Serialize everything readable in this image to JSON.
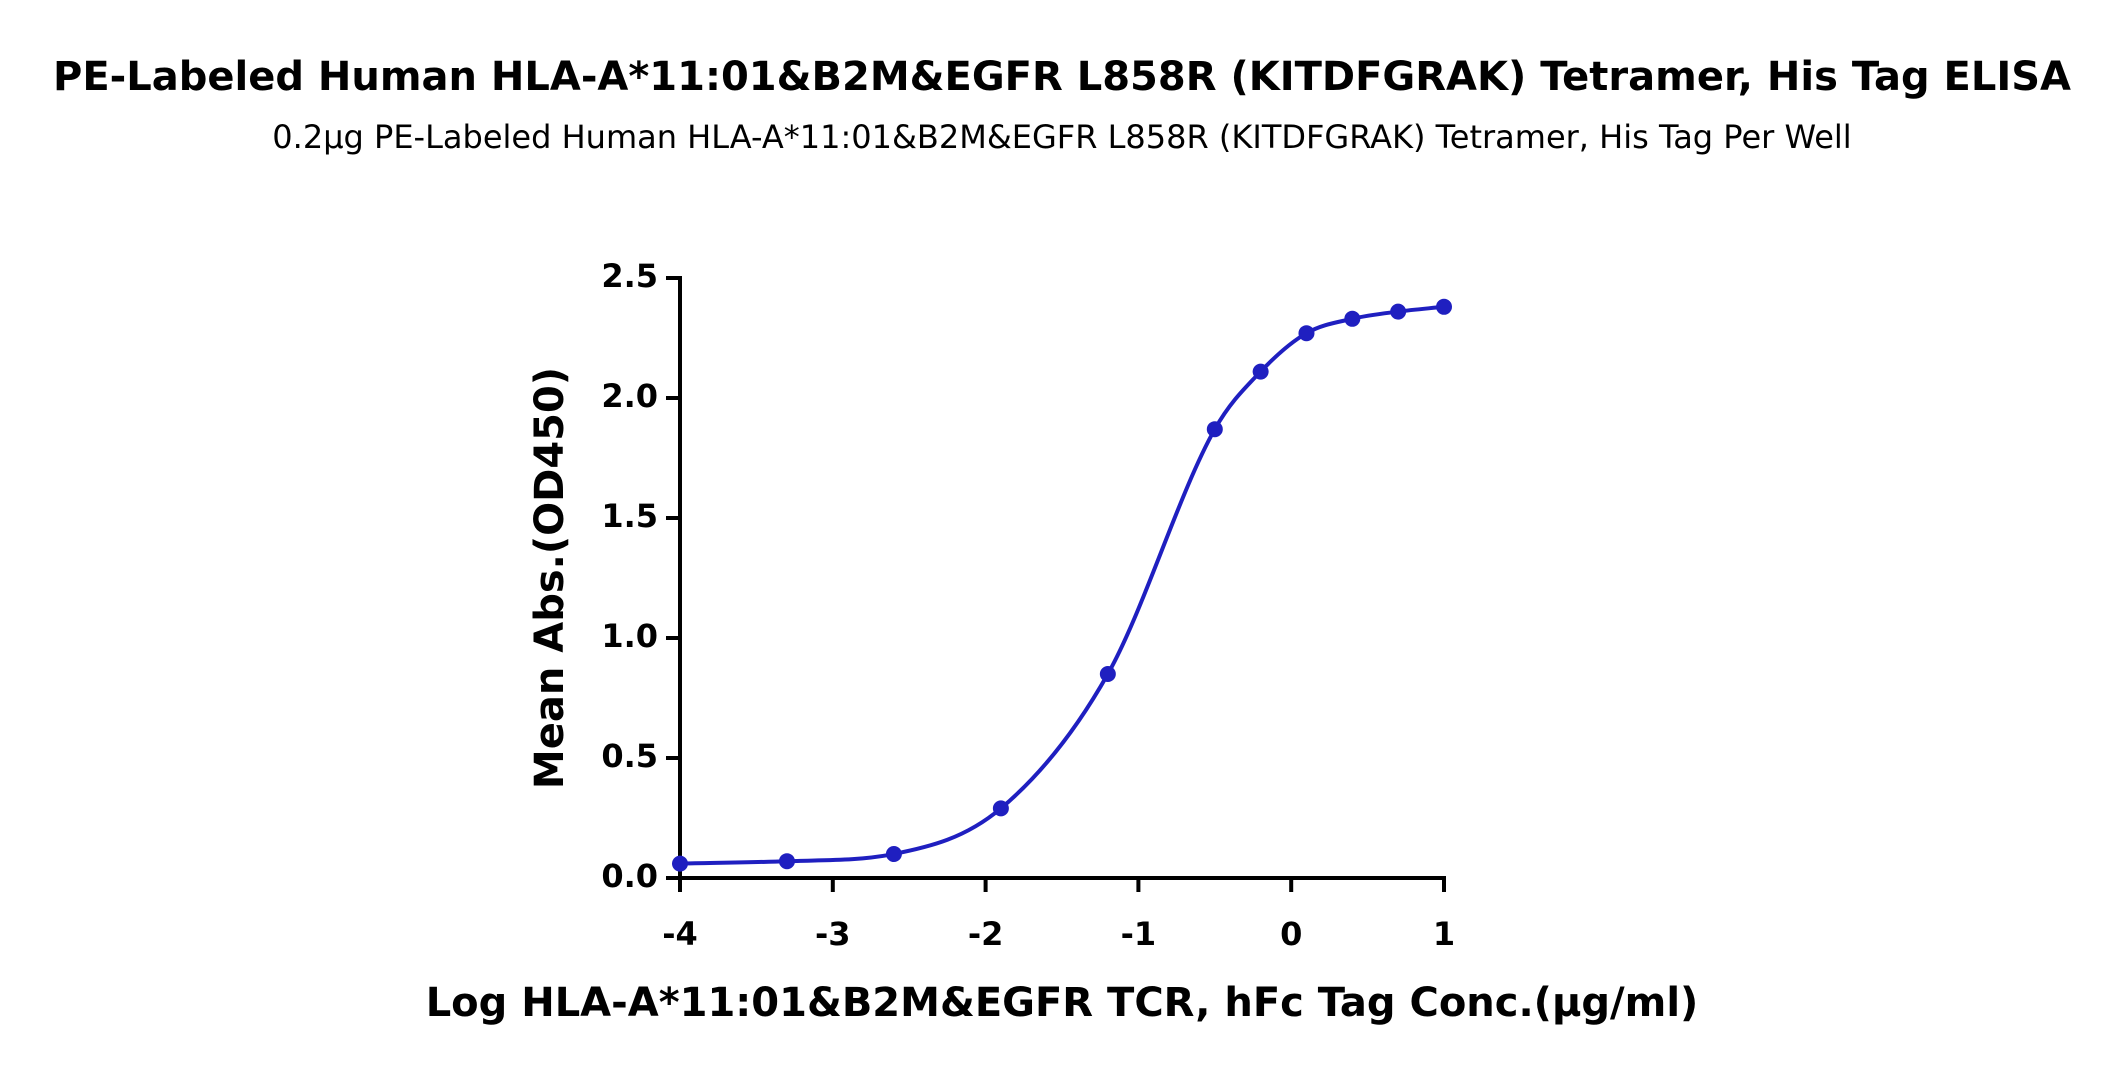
{
  "chart_data": {
    "type": "line",
    "title": "PE-Labeled Human HLA-A*11:01&B2M&EGFR L858R (KITDFGRAK) Tetramer, His Tag ELISA",
    "subtitle": "0.2μg PE-Labeled Human HLA-A*11:01&B2M&EGFR L858R (KITDFGRAK) Tetramer, His Tag Per Well",
    "x_label": "Log HLA-A*11:01&B2M&EGFR TCR, hFc Tag Conc.(μg/ml)",
    "y_label": "Mean Abs.(OD450)",
    "x": [
      -4,
      -3.3,
      -2.6,
      -1.9,
      -1.2,
      -0.5,
      -0.2,
      0.1,
      0.4,
      0.7,
      1.0
    ],
    "values": [
      0.06,
      0.07,
      0.1,
      0.29,
      0.85,
      1.87,
      2.11,
      2.27,
      2.33,
      2.36,
      2.38
    ],
    "color": "#1f1fc0",
    "xlim": [
      -4,
      1
    ],
    "xticks": [
      -4,
      -3,
      -2,
      -1,
      0,
      1
    ],
    "ylim": [
      0,
      2.5
    ],
    "yticks": [
      {
        "value": 0,
        "label": "0.0"
      },
      0.5,
      {
        "value": 1,
        "label": "1.0"
      },
      1.5,
      {
        "value": 2,
        "label": "2.0"
      },
      2.5
    ]
  }
}
